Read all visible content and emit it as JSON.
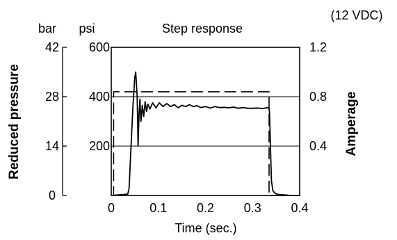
{
  "chart_data": {
    "type": "line",
    "title": "Step response",
    "xlabel": "Time (sec.)",
    "x_ticks": [
      0,
      0.1,
      0.2,
      0.3,
      0.4
    ],
    "xlim": [
      0,
      0.4
    ],
    "y_left_outer": {
      "unit": "bar",
      "label": "Reduced pressure",
      "ticks": [
        0,
        14,
        28,
        42
      ],
      "ylim": [
        0,
        42
      ]
    },
    "y_left_inner": {
      "unit": "psi",
      "ticks": [
        200,
        400,
        600
      ],
      "ylim": [
        0,
        600
      ]
    },
    "y_right": {
      "unit": "(12 VDC)",
      "label": "Amperage",
      "ticks": [
        0.4,
        0.8,
        1.2
      ],
      "ylim": [
        0,
        1.2
      ]
    },
    "grid": true,
    "series": [
      {
        "style": "solid",
        "axis": "psi",
        "x": [
          0,
          0.035,
          0.038,
          0.042,
          0.046,
          0.05,
          0.052,
          0.055,
          0.057,
          0.059,
          0.061,
          0.063,
          0.066,
          0.069,
          0.072,
          0.075,
          0.078,
          0.082,
          0.088,
          0.095,
          0.102,
          0.11,
          0.118,
          0.126,
          0.134,
          0.142,
          0.15,
          0.158,
          0.166,
          0.174,
          0.182,
          0.19,
          0.2,
          0.21,
          0.22,
          0.23,
          0.24,
          0.25,
          0.26,
          0.27,
          0.28,
          0.29,
          0.3,
          0.31,
          0.32,
          0.33,
          0.334,
          0.336,
          0.338,
          0.34,
          0.343,
          0.347,
          0.352,
          0.36,
          0.37,
          0.38,
          0.4
        ],
        "y": [
          0,
          5,
          30,
          200,
          360,
          480,
          500,
          400,
          200,
          330,
          390,
          300,
          365,
          320,
          380,
          340,
          370,
          350,
          375,
          355,
          375,
          360,
          372,
          360,
          368,
          355,
          365,
          360,
          368,
          360,
          364,
          356,
          360,
          354,
          360,
          356,
          357,
          355,
          358,
          353,
          356,
          353,
          353,
          354,
          352,
          355,
          356,
          340,
          200,
          60,
          20,
          10,
          5,
          3,
          2,
          0,
          0
        ]
      },
      {
        "style": "dashed",
        "axis": "amperage",
        "x": [
          0,
          0.005,
          0.005,
          0.335,
          0.335,
          0.4
        ],
        "y": [
          0,
          0,
          0.84,
          0.84,
          0,
          0
        ]
      }
    ]
  }
}
